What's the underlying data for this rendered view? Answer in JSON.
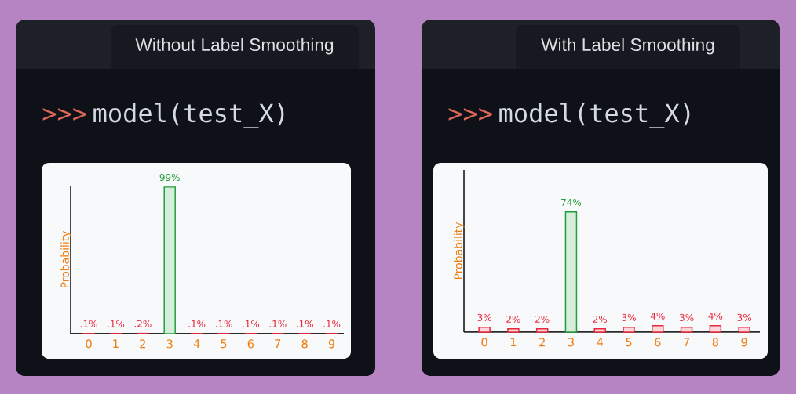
{
  "chart_data": [
    {
      "type": "bar",
      "title": "Without Label Smoothing",
      "annotations": [
        ">>>",
        "model(test_X)"
      ],
      "ylabel": "Probability",
      "categories": [
        "0",
        "1",
        "2",
        "3",
        "4",
        "5",
        "6",
        "7",
        "8",
        "9"
      ],
      "values": [
        0.1,
        0.1,
        0.2,
        99,
        0.1,
        0.1,
        0.1,
        0.1,
        0.1,
        0.1
      ],
      "colors": [
        "#e8283c",
        "#e8283c",
        "#e8283c",
        "#1f9d3a",
        "#e8283c",
        "#e8283c",
        "#e8283c",
        "#e8283c",
        "#e8283c",
        "#e8283c"
      ],
      "value_labels": [
        ".1%",
        ".1%",
        ".2%",
        "99%",
        ".1%",
        ".1%",
        ".1%",
        ".1%",
        ".1%",
        ".1%"
      ],
      "ylim": [
        0,
        100
      ],
      "tick_labels": "x"
    },
    {
      "type": "bar",
      "title": "With Label Smoothing",
      "annotations": [
        ">>>",
        "model(test_X)"
      ],
      "ylabel": "Probability",
      "categories": [
        "0",
        "1",
        "2",
        "3",
        "4",
        "5",
        "6",
        "7",
        "8",
        "9"
      ],
      "values": [
        3,
        2,
        2,
        74,
        2,
        3,
        4,
        3,
        4,
        3
      ],
      "colors": [
        "#e8283c",
        "#e8283c",
        "#e8283c",
        "#1f9d3a",
        "#e8283c",
        "#e8283c",
        "#e8283c",
        "#e8283c",
        "#e8283c",
        "#e8283c"
      ],
      "value_labels": [
        "3%",
        "2%",
        "2%",
        "74%",
        "2%",
        "3%",
        "4%",
        "3%",
        "4%",
        "3%"
      ],
      "ylim": [
        0,
        100
      ],
      "tick_labels": "x"
    }
  ]
}
